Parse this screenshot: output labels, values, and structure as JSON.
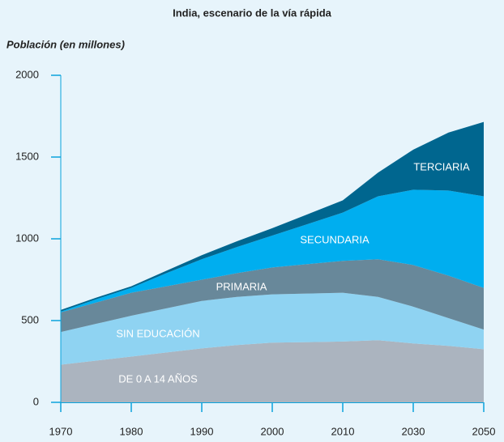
{
  "chart_data": {
    "type": "stacked-area",
    "title": "India, escenario de la vía rápida",
    "y_label": "Población (en millones)",
    "categories": [
      "1970",
      null,
      "1980",
      null,
      "1990",
      null,
      "2000",
      null,
      "2010",
      null,
      "2030",
      null,
      "2050"
    ],
    "series": [
      {
        "name": "DE 0 A 14 AÑOS",
        "color": "#abb4bf",
        "values": [
          230,
          255,
          280,
          305,
          330,
          350,
          365,
          368,
          372,
          380,
          360,
          345,
          325
        ]
      },
      {
        "name": "SIN EDUCACIÓN",
        "color": "#8fd3f2",
        "values": [
          200,
          225,
          250,
          270,
          290,
          295,
          295,
          297,
          298,
          265,
          225,
          170,
          120
        ]
      },
      {
        "name": "PRIMARIA",
        "color": "#68889a",
        "values": [
          120,
          130,
          140,
          135,
          130,
          145,
          165,
          180,
          195,
          230,
          255,
          260,
          255
        ]
      },
      {
        "name": "SECUNDARIA",
        "color": "#00aeef",
        "values": [
          5,
          20,
          30,
          80,
          125,
          160,
          195,
          245,
          295,
          385,
          460,
          520,
          560
        ]
      },
      {
        "name": "TERCIARIA",
        "color": "#00668f",
        "values": [
          10,
          10,
          10,
          15,
          25,
          35,
          45,
          60,
          75,
          145,
          245,
          355,
          455
        ]
      }
    ],
    "ylim": [
      0,
      2000
    ],
    "yticks": [
      0,
      500,
      1000,
      1500,
      2000
    ]
  }
}
